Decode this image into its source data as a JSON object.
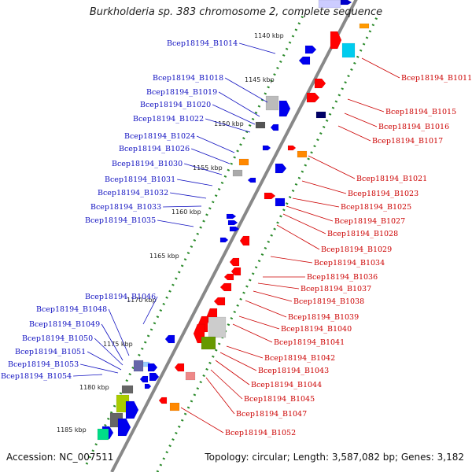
{
  "title": "Burkholderia sp. 383 chromosome 2, complete sequence",
  "footer": {
    "accession": "Accession: NC_007511",
    "topology": "Topology: circular; Length: 3,587,082 bp; Genes: 3,182"
  },
  "colors": {
    "left_label": "#1010c0",
    "right_label": "#cc0000",
    "axis": "#888888",
    "tick": "#2a8a2a"
  },
  "kbp_ticks": [
    "1140 kbp",
    "1145 kbp",
    "1150 kbp",
    "1155 kbp",
    "1160 kbp",
    "1165 kbp",
    "1170 kbp",
    "1175 kbp",
    "1180 kbp",
    "1185 kbp"
  ],
  "left_labels": [
    "Bcep18194_B1014",
    "Bcep18194_B1018",
    "Bcep18194_B1019",
    "Bcep18194_B1020",
    "Bcep18194_B1022",
    "Bcep18194_B1024",
    "Bcep18194_B1026",
    "Bcep18194_B1030",
    "Bcep18194_B1031",
    "Bcep18194_B1032",
    "Bcep18194_B1033",
    "Bcep18194_B1035",
    "Bcep18194_B1046",
    "Bcep18194_B1048",
    "Bcep18194_B1049",
    "Bcep18194_B1050",
    "Bcep18194_B1051",
    "Bcep18194_B1053",
    "Bcep18194_B1054"
  ],
  "right_labels": [
    "Bcep18194_B1011",
    "Bcep18194_B1015",
    "Bcep18194_B1016",
    "Bcep18194_B1017",
    "Bcep18194_B1021",
    "Bcep18194_B1023",
    "Bcep18194_B1025",
    "Bcep18194_B1027",
    "Bcep18194_B1028",
    "Bcep18194_B1029",
    "Bcep18194_B1034",
    "Bcep18194_B1036",
    "Bcep18194_B1037",
    "Bcep18194_B1038",
    "Bcep18194_B1039",
    "Bcep18194_B1040",
    "Bcep18194_B1041",
    "Bcep18194_B1042",
    "Bcep18194_B1043",
    "Bcep18194_B1044",
    "Bcep18194_B1045",
    "Bcep18194_B1047",
    "Bcep18194_B1052"
  ]
}
